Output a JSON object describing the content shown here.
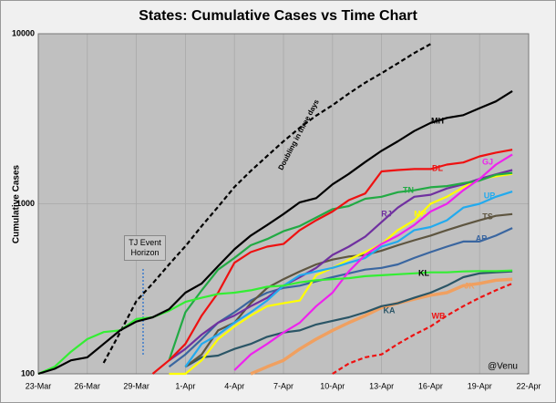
{
  "chart_data": {
    "type": "line",
    "title": "States: Cumulative Cases vs Time Chart",
    "y_label": "Cumulative Cases",
    "annotations": {
      "event": "TJ Event Horizon",
      "credit": "@Venu"
    },
    "categories": [
      "23-Mar",
      null,
      null,
      "26-Mar",
      null,
      null,
      "29-Mar",
      null,
      null,
      "1-Apr",
      null,
      null,
      "4-Apr",
      null,
      null,
      "7-Apr",
      null,
      null,
      "10-Apr",
      null,
      null,
      "13-Apr",
      null,
      null,
      "16-Apr",
      null,
      null,
      "19-Apr",
      null,
      null,
      "22-Apr"
    ],
    "log_scale": true,
    "ylim": [
      100,
      10000
    ],
    "yticks": [
      100,
      1000,
      10000
    ],
    "grid": true,
    "series": [
      {
        "name": "MH",
        "color": "#000000",
        "values": [
          100,
          107,
          120,
          125,
          150,
          180,
          203,
          215,
          240,
          300,
          340,
          430,
          540,
          650,
          750,
          870,
          1020,
          1080,
          1300,
          1500,
          1760,
          2050,
          2330,
          2680,
          2990,
          3200,
          3320,
          3650,
          4000,
          4600,
          null
        ]
      },
      {
        "name": "KL",
        "color": "#33ee33",
        "values": [
          100,
          110,
          135,
          160,
          176,
          180,
          210,
          215,
          235,
          265,
          280,
          295,
          300,
          310,
          325,
          330,
          345,
          355,
          360,
          365,
          375,
          380,
          385,
          390,
          395,
          395,
          400,
          402,
          402,
          405,
          null
        ]
      },
      {
        "name": "Doubling in three days",
        "color": "#000000",
        "dashed": true,
        "values": [
          null,
          null,
          null,
          null,
          116,
          175,
          268,
          340,
          440,
          563,
          740,
          960,
          1255,
          1560,
          1910,
          2330,
          2800,
          3300,
          3800,
          4450,
          5150,
          5860,
          6700,
          7700,
          8700,
          null,
          null,
          null,
          null,
          null,
          null
        ]
      },
      {
        "name": "DL",
        "color": "#ee1111",
        "values": [
          null,
          null,
          null,
          null,
          null,
          null,
          null,
          100,
          120,
          150,
          220,
          300,
          450,
          520,
          560,
          580,
          700,
          800,
          900,
          1050,
          1150,
          1550,
          1580,
          1600,
          1600,
          1700,
          1750,
          1900,
          2000,
          2080,
          null
        ]
      },
      {
        "name": "GJ",
        "color": "#ee22ee",
        "values": [
          null,
          null,
          null,
          null,
          null,
          null,
          null,
          null,
          null,
          null,
          null,
          null,
          105,
          130,
          150,
          175,
          200,
          250,
          300,
          400,
          500,
          580,
          650,
          750,
          900,
          1000,
          1200,
          1400,
          1700,
          1950,
          null
        ]
      },
      {
        "name": "TN",
        "color": "#22aa44",
        "values": [
          null,
          null,
          null,
          null,
          null,
          null,
          null,
          null,
          120,
          230,
          310,
          410,
          480,
          570,
          620,
          690,
          740,
          830,
          930,
          970,
          1070,
          1100,
          1170,
          1200,
          1250,
          1270,
          1320,
          1370,
          1480,
          1520,
          null
        ]
      },
      {
        "name": "UP",
        "color": "#22aaee",
        "values": [
          null,
          null,
          null,
          null,
          null,
          null,
          null,
          null,
          null,
          110,
          150,
          170,
          200,
          230,
          270,
          330,
          380,
          400,
          420,
          450,
          480,
          560,
          600,
          700,
          730,
          800,
          950,
          1000,
          1100,
          1180,
          null
        ]
      },
      {
        "name": "RJ",
        "color": "#7030a0",
        "values": [
          null,
          null,
          null,
          null,
          null,
          null,
          null,
          null,
          120,
          140,
          170,
          200,
          220,
          250,
          280,
          330,
          370,
          420,
          500,
          560,
          640,
          780,
          950,
          1100,
          1130,
          1230,
          1300,
          1400,
          1490,
          1580,
          null
        ]
      },
      {
        "name": "MP",
        "color": "#ffff00",
        "values": [
          null,
          null,
          null,
          null,
          null,
          null,
          null,
          null,
          100,
          100,
          120,
          160,
          190,
          220,
          250,
          260,
          270,
          380,
          420,
          470,
          520,
          580,
          700,
          800,
          1000,
          1100,
          1250,
          1400,
          1450,
          1500,
          null
        ]
      },
      {
        "name": "TS",
        "color": "#5e5540",
        "values": [
          null,
          null,
          null,
          null,
          null,
          null,
          null,
          null,
          null,
          110,
          130,
          180,
          200,
          260,
          320,
          360,
          400,
          440,
          470,
          490,
          500,
          530,
          570,
          610,
          650,
          700,
          750,
          800,
          850,
          870,
          null
        ]
      },
      {
        "name": "AP",
        "color": "#3a66a0",
        "values": [
          null,
          null,
          null,
          null,
          null,
          null,
          null,
          null,
          110,
          130,
          160,
          200,
          230,
          270,
          300,
          320,
          330,
          350,
          370,
          390,
          410,
          420,
          440,
          480,
          520,
          560,
          600,
          600,
          650,
          720,
          null
        ]
      },
      {
        "name": "KA",
        "color": "#2a5566",
        "values": [
          null,
          null,
          null,
          null,
          null,
          null,
          null,
          null,
          null,
          110,
          125,
          128,
          140,
          150,
          165,
          175,
          180,
          195,
          205,
          215,
          230,
          250,
          260,
          280,
          300,
          330,
          370,
          390,
          395,
          400,
          null
        ]
      },
      {
        "name": "JK",
        "color": "#f0a060",
        "values": [
          null,
          null,
          null,
          null,
          null,
          null,
          null,
          null,
          null,
          null,
          null,
          null,
          null,
          100,
          110,
          120,
          140,
          160,
          180,
          200,
          220,
          245,
          260,
          275,
          290,
          300,
          330,
          340,
          355,
          360,
          null
        ]
      },
      {
        "name": "WB",
        "color": "#ee1111",
        "dashed": true,
        "values": [
          null,
          null,
          null,
          null,
          null,
          null,
          null,
          null,
          null,
          null,
          null,
          null,
          null,
          null,
          null,
          null,
          null,
          null,
          100,
          115,
          125,
          130,
          150,
          170,
          190,
          220,
          250,
          280,
          310,
          340,
          null
        ]
      }
    ]
  }
}
